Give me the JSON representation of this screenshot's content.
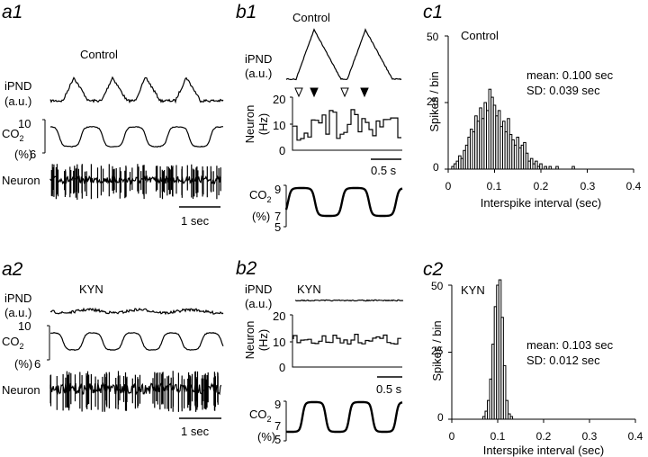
{
  "panels": {
    "a1": {
      "label": "a1",
      "condition": "Control",
      "ipnd_label": [
        "iPND",
        "(a.u.)"
      ],
      "co2_label": [
        "CO",
        "2",
        "(%)"
      ],
      "co2_ticks": [
        "10",
        "6"
      ],
      "neuron_label": "Neuron",
      "scale": "1 sec"
    },
    "a2": {
      "label": "a2",
      "condition": "KYN",
      "ipnd_label": [
        "iPND",
        "(a.u.)"
      ],
      "co2_label": [
        "CO",
        "2",
        "(%)"
      ],
      "co2_ticks": [
        "10",
        "6"
      ],
      "neuron_label": "Neuron",
      "scale": "1 sec"
    },
    "b1": {
      "label": "b1",
      "condition": "Control",
      "ipnd_label": [
        "iPND",
        "(a.u.)"
      ],
      "neuron_label": [
        "Neuron",
        "(Hz)"
      ],
      "neuron_ticks": [
        "20",
        "10",
        "0"
      ],
      "scale": "0.5 s",
      "co2_label": [
        "CO",
        "2",
        "(%)"
      ],
      "co2_ticks": [
        "9",
        "7",
        "5"
      ]
    },
    "b2": {
      "label": "b2",
      "condition": "KYN",
      "ipnd_label": [
        "iPND",
        "(a.u.)"
      ],
      "neuron_label": [
        "Neuron",
        "(Hz)"
      ],
      "neuron_ticks": [
        "20",
        "10",
        "0"
      ],
      "scale": "0.5 s",
      "co2_label": [
        "CO",
        "2",
        "(%)"
      ],
      "co2_ticks": [
        "9",
        "7",
        "5"
      ]
    },
    "c1": {
      "label": "c1",
      "condition": "Control",
      "mean": "mean: 0.100 sec",
      "sd": "SD: 0.039 sec",
      "ylabel": "Spikes / bin",
      "xlabel": "Interspike interval (sec)",
      "yticks": [
        "50",
        "25",
        "0"
      ],
      "xticks": [
        "0",
        "0.1",
        "0.2",
        "0.3",
        "0.4"
      ]
    },
    "c2": {
      "label": "c2",
      "condition": "KYN",
      "mean": "mean: 0.103 sec",
      "sd": "SD: 0.012 sec",
      "ylabel": "Spikes / bin",
      "xlabel": "Interspike interval (sec)",
      "yticks": [
        "50",
        "25",
        "0"
      ],
      "xticks": [
        "0",
        "0.1",
        "0.2",
        "0.3",
        "0.4"
      ]
    }
  },
  "chart_data": [
    {
      "type": "bar",
      "panel": "c1",
      "xlabel": "Interspike interval (sec)",
      "ylabel": "Spikes / bin",
      "xlim": [
        0,
        0.4
      ],
      "ylim": [
        0,
        50
      ],
      "bin_width": 0.005,
      "x": [
        0.01,
        0.015,
        0.02,
        0.025,
        0.03,
        0.035,
        0.04,
        0.045,
        0.05,
        0.055,
        0.06,
        0.065,
        0.07,
        0.075,
        0.08,
        0.085,
        0.09,
        0.095,
        0.1,
        0.105,
        0.11,
        0.115,
        0.12,
        0.125,
        0.13,
        0.135,
        0.14,
        0.145,
        0.15,
        0.155,
        0.16,
        0.165,
        0.17,
        0.175,
        0.18,
        0.185,
        0.19,
        0.195,
        0.2,
        0.21,
        0.22,
        0.235,
        0.27
      ],
      "values": [
        1,
        2,
        3,
        5,
        4,
        7,
        9,
        12,
        15,
        14,
        20,
        18,
        23,
        19,
        25,
        22,
        30,
        27,
        24,
        20,
        22,
        16,
        18,
        14,
        19,
        13,
        11,
        9,
        12,
        8,
        9,
        10,
        6,
        3,
        4,
        2,
        3,
        1,
        2,
        1,
        1,
        1,
        1
      ]
    },
    {
      "type": "bar",
      "panel": "c2",
      "xlabel": "Interspike interval (sec)",
      "ylabel": "Spikes / bin",
      "xlim": [
        0,
        0.4
      ],
      "ylim": [
        0,
        50
      ],
      "bin_width": 0.005,
      "x": [
        0.07,
        0.075,
        0.08,
        0.085,
        0.09,
        0.095,
        0.1,
        0.105,
        0.11,
        0.115,
        0.12,
        0.125,
        0.13
      ],
      "values": [
        1,
        3,
        7,
        15,
        28,
        42,
        50,
        52,
        38,
        20,
        7,
        2,
        1
      ]
    }
  ]
}
